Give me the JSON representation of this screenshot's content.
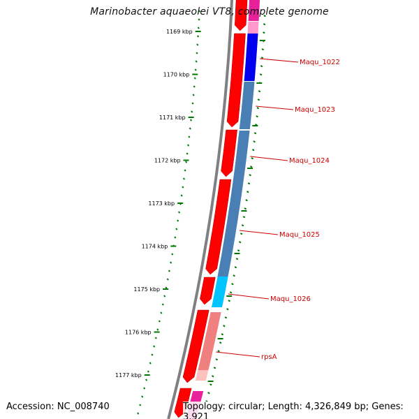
{
  "title": "Marinobacter aquaeolei VT8, complete genome",
  "footer": {
    "accession": "Accession: NC_008740",
    "topology": "Topology: circular; Length: 4,326,849 bp; Genes: 3,921"
  },
  "ruler": {
    "labels": [
      "1169 kbp",
      "1170 kbp",
      "1171 kbp",
      "1172 kbp",
      "1173 kbp",
      "1174 kbp",
      "1175 kbp",
      "1176 kbp",
      "1177 kbp"
    ]
  },
  "genes": {
    "labels": [
      "Maqu_1022",
      "Maqu_1023",
      "Maqu_1024",
      "Maqu_1025",
      "Maqu_1026",
      "rpsA"
    ]
  },
  "colors": {
    "backbone": "#808080",
    "forward_orf": "#ff0000",
    "tick": "#007700",
    "label": "#cc0000",
    "magenta": "#e8209a",
    "blue": "#0000ee",
    "steelblue": "#4a7fb5",
    "cyan": "#00c4ff",
    "salmon": "#f08080"
  }
}
